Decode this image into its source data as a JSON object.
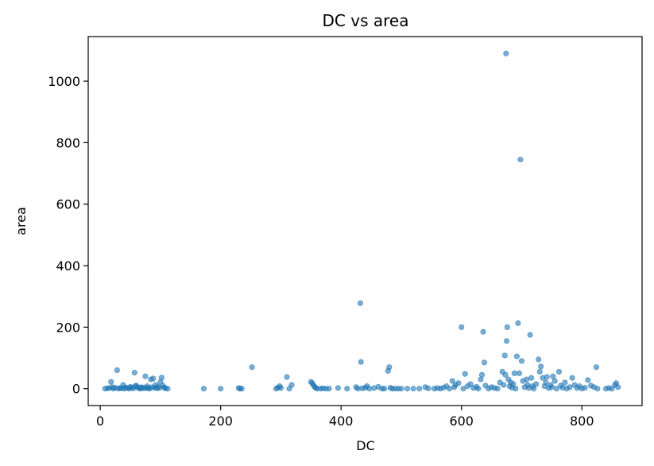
{
  "chart_data": {
    "type": "scatter",
    "title": "DC vs area",
    "xlabel": "DC",
    "ylabel": "area",
    "xlim": [
      -20,
      900
    ],
    "ylim": [
      -55,
      1145
    ],
    "xticks": [
      0,
      200,
      400,
      600,
      800
    ],
    "yticks": [
      0,
      200,
      400,
      600,
      800,
      1000
    ],
    "grid": false,
    "marker_color": "#1f77b4",
    "marker_opacity": 0.6,
    "series": [
      {
        "points": [
          [
            8,
            0
          ],
          [
            12,
            1
          ],
          [
            15,
            2
          ],
          [
            18,
            22
          ],
          [
            20,
            5
          ],
          [
            22,
            0
          ],
          [
            25,
            3
          ],
          [
            28,
            60
          ],
          [
            30,
            0
          ],
          [
            33,
            2
          ],
          [
            35,
            1
          ],
          [
            38,
            12
          ],
          [
            40,
            0
          ],
          [
            42,
            4
          ],
          [
            45,
            2
          ],
          [
            48,
            0
          ],
          [
            50,
            6
          ],
          [
            52,
            3
          ],
          [
            55,
            1
          ],
          [
            57,
            52
          ],
          [
            58,
            8
          ],
          [
            60,
            10
          ],
          [
            62,
            4
          ],
          [
            64,
            2
          ],
          [
            66,
            0
          ],
          [
            68,
            5
          ],
          [
            70,
            1
          ],
          [
            72,
            3
          ],
          [
            75,
            40
          ],
          [
            76,
            1
          ],
          [
            78,
            8
          ],
          [
            80,
            2
          ],
          [
            82,
            0
          ],
          [
            84,
            30
          ],
          [
            86,
            5
          ],
          [
            88,
            33
          ],
          [
            90,
            3
          ],
          [
            92,
            12
          ],
          [
            94,
            1
          ],
          [
            96,
            6
          ],
          [
            98,
            2
          ],
          [
            100,
            22
          ],
          [
            102,
            36
          ],
          [
            104,
            10
          ],
          [
            106,
            4
          ],
          [
            108,
            1
          ],
          [
            112,
            0
          ],
          [
            172,
            0
          ],
          [
            200,
            0
          ],
          [
            230,
            2
          ],
          [
            232,
            0
          ],
          [
            235,
            0
          ],
          [
            252,
            70
          ],
          [
            292,
            0
          ],
          [
            295,
            3
          ],
          [
            298,
            8
          ],
          [
            300,
            2
          ],
          [
            310,
            38
          ],
          [
            314,
            0
          ],
          [
            318,
            12
          ],
          [
            350,
            22
          ],
          [
            352,
            18
          ],
          [
            354,
            12
          ],
          [
            356,
            6
          ],
          [
            358,
            3
          ],
          [
            360,
            0
          ],
          [
            366,
            0
          ],
          [
            370,
            1
          ],
          [
            375,
            0
          ],
          [
            380,
            0
          ],
          [
            395,
            2
          ],
          [
            410,
            0
          ],
          [
            425,
            5
          ],
          [
            428,
            0
          ],
          [
            432,
            278
          ],
          [
            433,
            87
          ],
          [
            435,
            1
          ],
          [
            440,
            3
          ],
          [
            443,
            8
          ],
          [
            447,
            0
          ],
          [
            455,
            2
          ],
          [
            462,
            6
          ],
          [
            468,
            0
          ],
          [
            472,
            0
          ],
          [
            478,
            58
          ],
          [
            480,
            70
          ],
          [
            482,
            3
          ],
          [
            485,
            0
          ],
          [
            490,
            0
          ],
          [
            495,
            0
          ],
          [
            500,
            0
          ],
          [
            510,
            0
          ],
          [
            520,
            0
          ],
          [
            530,
            0
          ],
          [
            540,
            5
          ],
          [
            545,
            1
          ],
          [
            555,
            0
          ],
          [
            560,
            2
          ],
          [
            565,
            0
          ],
          [
            570,
            3
          ],
          [
            575,
            8
          ],
          [
            580,
            0
          ],
          [
            585,
            25
          ],
          [
            588,
            5
          ],
          [
            590,
            12
          ],
          [
            595,
            18
          ],
          [
            600,
            200
          ],
          [
            603,
            0
          ],
          [
            606,
            48
          ],
          [
            610,
            8
          ],
          [
            615,
            15
          ],
          [
            620,
            2
          ],
          [
            625,
            6
          ],
          [
            628,
            0
          ],
          [
            632,
            30
          ],
          [
            634,
            45
          ],
          [
            636,
            185
          ],
          [
            638,
            85
          ],
          [
            640,
            10
          ],
          [
            645,
            0
          ],
          [
            650,
            5
          ],
          [
            655,
            2
          ],
          [
            660,
            0
          ],
          [
            664,
            20
          ],
          [
            668,
            55
          ],
          [
            670,
            12
          ],
          [
            672,
            108
          ],
          [
            673,
            45
          ],
          [
            674,
            1090
          ],
          [
            675,
            155
          ],
          [
            676,
            200
          ],
          [
            678,
            30
          ],
          [
            680,
            8
          ],
          [
            682,
            20
          ],
          [
            684,
            3
          ],
          [
            686,
            15
          ],
          [
            688,
            50
          ],
          [
            690,
            0
          ],
          [
            692,
            105
          ],
          [
            694,
            213
          ],
          [
            696,
            50
          ],
          [
            698,
            745
          ],
          [
            700,
            90
          ],
          [
            702,
            25
          ],
          [
            705,
            5
          ],
          [
            708,
            30
          ],
          [
            710,
            12
          ],
          [
            712,
            2
          ],
          [
            714,
            175
          ],
          [
            716,
            35
          ],
          [
            718,
            8
          ],
          [
            720,
            0
          ],
          [
            724,
            15
          ],
          [
            728,
            95
          ],
          [
            730,
            55
          ],
          [
            732,
            72
          ],
          [
            735,
            35
          ],
          [
            738,
            8
          ],
          [
            740,
            20
          ],
          [
            742,
            38
          ],
          [
            745,
            2
          ],
          [
            748,
            12
          ],
          [
            750,
            5
          ],
          [
            752,
            40
          ],
          [
            755,
            25
          ],
          [
            758,
            0
          ],
          [
            762,
            55
          ],
          [
            765,
            10
          ],
          [
            768,
            3
          ],
          [
            772,
            20
          ],
          [
            775,
            0
          ],
          [
            780,
            5
          ],
          [
            784,
            35
          ],
          [
            788,
            12
          ],
          [
            792,
            2
          ],
          [
            796,
            8
          ],
          [
            800,
            0
          ],
          [
            805,
            3
          ],
          [
            810,
            28
          ],
          [
            815,
            10
          ],
          [
            820,
            5
          ],
          [
            824,
            70
          ],
          [
            826,
            0
          ],
          [
            840,
            0
          ],
          [
            845,
            2
          ],
          [
            850,
            0
          ],
          [
            855,
            12
          ],
          [
            857,
            18
          ],
          [
            860,
            5
          ]
        ]
      }
    ]
  }
}
